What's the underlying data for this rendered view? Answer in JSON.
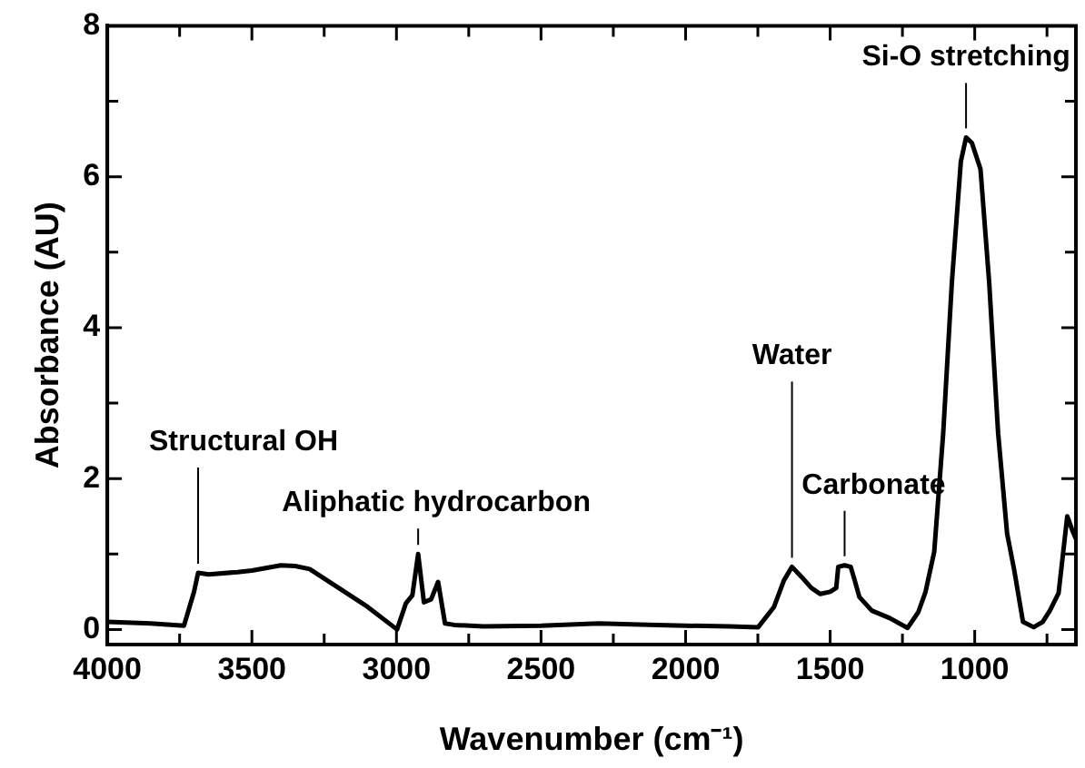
{
  "chart_data": {
    "type": "line",
    "xlabel": "Wavenumber (cm⁻¹)",
    "ylabel": "Absorbance (AU)",
    "xlim": [
      4000,
      650
    ],
    "ylim": [
      -0.2,
      8
    ],
    "xticks": [
      4000,
      {
        "value": 3750,
        "label": null
      },
      3500,
      {
        "value": 3250,
        "label": null
      },
      3000,
      {
        "value": 2750,
        "label": null
      },
      2500,
      {
        "value": 2250,
        "label": null
      },
      2000,
      {
        "value": 1750,
        "label": null
      },
      1500,
      {
        "value": 1250,
        "label": null
      },
      1000,
      {
        "value": 750,
        "label": null
      }
    ],
    "yticks": [
      0,
      {
        "value": 1,
        "label": null
      },
      2,
      {
        "value": 3,
        "label": null
      },
      4,
      {
        "value": 5,
        "label": null
      },
      6,
      {
        "value": 7,
        "label": null
      },
      8
    ],
    "grid": false,
    "legend": false,
    "marker": "none",
    "line_style": "solid",
    "annotations": [
      {
        "text": "Structural OH",
        "x": 3686,
        "y": 0.75
      },
      {
        "text": "Aliphatic hydrocarbon",
        "x": 2925,
        "y": 1.0
      },
      {
        "text": "Water",
        "x": 1632,
        "y": 0.83
      },
      {
        "text": "Carbonate",
        "x": 1450,
        "y": 0.85
      },
      {
        "text": "Si-O stretching",
        "x": 1030,
        "y": 6.52
      }
    ],
    "series": [
      {
        "color": "#000000",
        "x": [
          4000,
          3850,
          3735,
          3700,
          3686,
          3650,
          3550,
          3500,
          3400,
          3350,
          3300,
          3200,
          3100,
          2998,
          2967,
          2945,
          2925,
          2905,
          2880,
          2856,
          2832,
          2800,
          2700,
          2500,
          2300,
          2100,
          2000,
          1850,
          1749,
          1694,
          1660,
          1632,
          1600,
          1565,
          1534,
          1500,
          1479,
          1472,
          1450,
          1429,
          1415,
          1399,
          1356,
          1294,
          1232,
          1195,
          1170,
          1140,
          1109,
          1079,
          1048,
          1030,
          1010,
          980,
          950,
          919,
          888,
          864,
          833,
          796,
          765,
          740,
          710,
          680,
          661,
          650
        ],
        "values": [
          0.1,
          0.08,
          0.05,
          0.5,
          0.75,
          0.73,
          0.76,
          0.78,
          0.85,
          0.84,
          0.8,
          0.55,
          0.3,
          0.0,
          0.35,
          0.45,
          1.0,
          0.36,
          0.4,
          0.63,
          0.08,
          0.06,
          0.04,
          0.05,
          0.08,
          0.06,
          0.05,
          0.04,
          0.03,
          0.3,
          0.65,
          0.83,
          0.7,
          0.55,
          0.47,
          0.5,
          0.55,
          0.83,
          0.85,
          0.83,
          0.65,
          0.43,
          0.25,
          0.15,
          0.02,
          0.23,
          0.5,
          1.03,
          2.6,
          4.6,
          6.2,
          6.52,
          6.45,
          6.1,
          4.6,
          2.6,
          1.27,
          0.8,
          0.1,
          0.03,
          0.1,
          0.25,
          0.48,
          1.5,
          1.3,
          1.2
        ]
      }
    ]
  }
}
